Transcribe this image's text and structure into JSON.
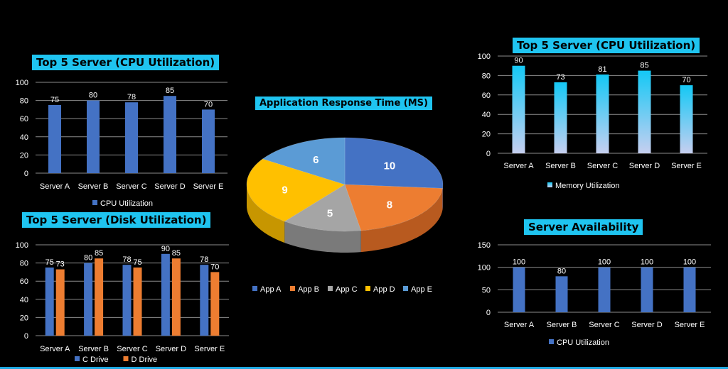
{
  "colors": {
    "blue": "#4472c4",
    "orange": "#ed7d31",
    "gray": "#a5a5a5",
    "yellow": "#ffc000",
    "lightblue": "#5b9bd5",
    "title_bg": "#1fc4f0",
    "cyan_top": "#14c8f5",
    "cyan_bottom": "#c6cff0"
  },
  "cpu_left": {
    "title": "Top 5 Server  (CPU Utilization)"
  },
  "disk": {
    "title": "Top 5 Server  (Disk Utilization)"
  },
  "pie": {
    "title": "Application Response Time (MS)"
  },
  "mem": {
    "title": "Top 5 Server  (CPU Utilization)"
  },
  "avail": {
    "title": "Server Availability"
  },
  "chart_data": [
    {
      "type": "bar",
      "title": "Top 5 Server  (CPU Utilization)",
      "categories": [
        "Server A",
        "Server B",
        "Server C",
        "Server D",
        "Server E"
      ],
      "series": [
        {
          "name": "CPU Utilization",
          "values": [
            75,
            80,
            78,
            85,
            70
          ]
        }
      ],
      "ylim": [
        0,
        100
      ],
      "yticks": [
        "0",
        "20",
        "40",
        "60",
        "80",
        "100"
      ],
      "grid": true,
      "legend": "bottom"
    },
    {
      "type": "bar",
      "title": "Top 5 Server  (Disk Utilization)",
      "categories": [
        "Server A",
        "Server B",
        "Server C",
        "Server D",
        "Server E"
      ],
      "series": [
        {
          "name": "C Drive",
          "values": [
            75,
            80,
            78,
            90,
            78
          ]
        },
        {
          "name": "D Drive",
          "values": [
            73,
            85,
            75,
            85,
            70
          ]
        }
      ],
      "ylim": [
        0,
        100
      ],
      "yticks": [
        "0",
        "20",
        "40",
        "60",
        "80",
        "100"
      ],
      "grid": true,
      "legend": "bottom"
    },
    {
      "type": "pie",
      "title": "Application Response Time (MS)",
      "categories": [
        "App A",
        "App B",
        "App C",
        "App D",
        "App E"
      ],
      "values": [
        10,
        8,
        5,
        9,
        6
      ],
      "legend": "bottom"
    },
    {
      "type": "bar",
      "title": "Top 5 Server  (CPU Utilization)",
      "categories": [
        "Server A",
        "Server B",
        "Server C",
        "Server D",
        "Server E"
      ],
      "series": [
        {
          "name": "Memory Utilization",
          "values": [
            90,
            73,
            81,
            85,
            70
          ]
        }
      ],
      "ylim": [
        0,
        100
      ],
      "yticks": [
        "0",
        "20",
        "40",
        "60",
        "80",
        "100"
      ],
      "grid": true,
      "legend": "bottom"
    },
    {
      "type": "bar",
      "title": "Server Availability",
      "categories": [
        "Server A",
        "Server B",
        "Server C",
        "Server D",
        "Server E"
      ],
      "series": [
        {
          "name": "CPU Utilization",
          "values": [
            100,
            80,
            100,
            100,
            100
          ]
        }
      ],
      "ylim": [
        0,
        150
      ],
      "yticks": [
        "0",
        "50",
        "100",
        "150"
      ],
      "grid": true,
      "legend": "bottom"
    }
  ]
}
